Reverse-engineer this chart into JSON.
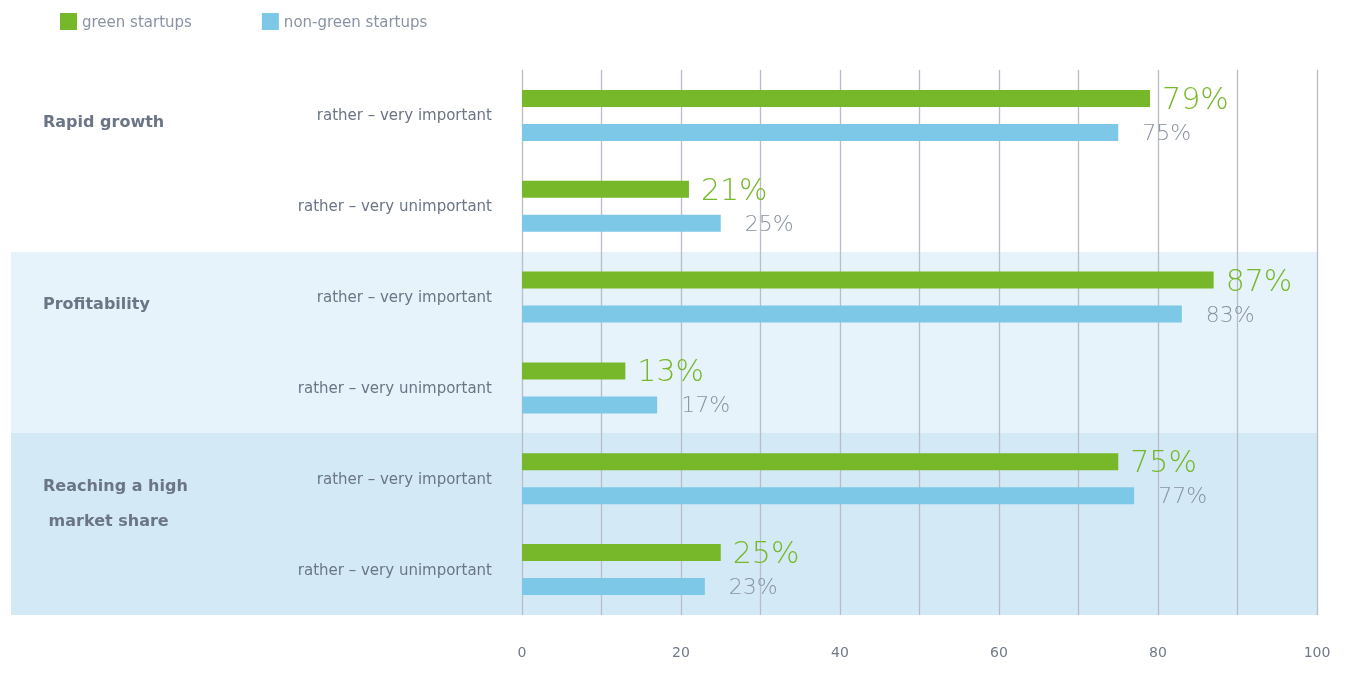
{
  "chart_data": {
    "type": "bar",
    "orientation": "horizontal",
    "categories": [
      "rather – very important",
      "rather – very unimportant",
      "rather – very important",
      "rather – very unimportant",
      "rather – very important",
      "rather – very unimportant"
    ],
    "series": [
      {
        "name": "green startups",
        "color": "#76b82a",
        "values": [
          79,
          21,
          87,
          13,
          75,
          25
        ],
        "value_labels": [
          "79%",
          "21%",
          "87%",
          "13%",
          "75%",
          "25%"
        ]
      },
      {
        "name": "non-green startups",
        "color": "#7dc8e6",
        "values": [
          75,
          25,
          83,
          17,
          77,
          23
        ],
        "value_labels": [
          "75%",
          "25%",
          "83%",
          "17%",
          "77%",
          "23%"
        ]
      }
    ],
    "xlim": [
      0,
      100
    ],
    "xticks": [
      0,
      {
        "value": 10,
        "label": null
      },
      20,
      {
        "value": 30,
        "label": null
      },
      40,
      {
        "value": 50,
        "label": null
      },
      60,
      {
        "value": 70,
        "label": null
      },
      80,
      {
        "value": 90,
        "label": null
      },
      100
    ],
    "annotations": [
      "Rapid growth",
      "Profitability",
      "Reaching a high market share"
    ],
    "grid": "x",
    "legend": "top left"
  }
}
